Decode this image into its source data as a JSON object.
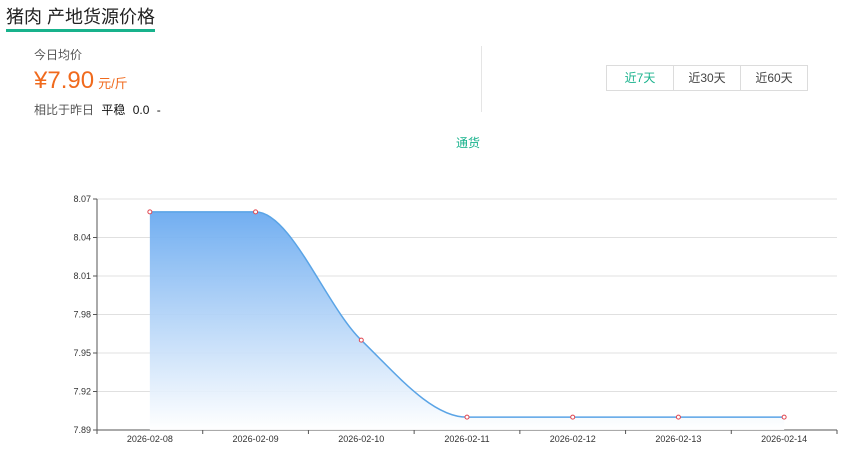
{
  "page": {
    "title": "猪肉 产地货源价格"
  },
  "price": {
    "label": "今日均价",
    "value": "¥7.90",
    "unit": "元/斤",
    "compare_label": "相比于昨日",
    "compare_status": "平稳",
    "compare_value": "0.0",
    "compare_dash": "-"
  },
  "range": {
    "buttons": [
      "近7天",
      "近30天",
      "近60天"
    ],
    "active": 0
  },
  "colors": {
    "accent": "#18b28c",
    "price": "#f06a1d",
    "line": "#5aa4e6",
    "marker": "#e0454f"
  },
  "chart_data": {
    "type": "area",
    "legend": [
      "通货"
    ],
    "series": [
      {
        "name": "通货",
        "values": [
          8.06,
          8.06,
          7.96,
          7.9,
          7.9,
          7.9,
          7.9
        ]
      }
    ],
    "categories": [
      "2026-02-08",
      "2026-02-09",
      "2026-02-10",
      "2026-02-11",
      "2026-02-12",
      "2026-02-13",
      "2026-02-14"
    ],
    "yticks": [
      "8.07",
      "8.04",
      "8.01",
      "7.98",
      "7.95",
      "7.92",
      "7.89"
    ],
    "ylim": [
      7.89,
      8.07
    ],
    "grid": true
  }
}
